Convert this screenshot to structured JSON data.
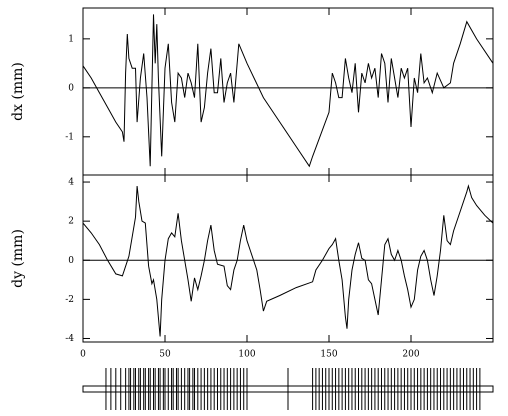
{
  "chart_data": [
    {
      "type": "line",
      "ylabel": "dx (mm)",
      "xlim": [
        0,
        250
      ],
      "xticks": [
        0,
        50,
        100,
        150,
        200
      ],
      "show_xtick_labels": false,
      "ylim": [
        -1.78,
        1.63
      ],
      "yticks": [
        -1,
        0,
        1
      ],
      "reference_line": 0,
      "color": "#000000",
      "x": [
        0,
        5,
        10,
        15,
        20,
        24,
        25,
        26,
        27,
        28,
        30,
        32,
        33,
        35,
        37,
        39,
        41,
        43,
        44,
        45,
        46,
        48,
        50,
        52,
        54,
        56,
        58,
        60,
        62,
        64,
        66,
        68,
        70,
        72,
        74,
        76,
        78,
        80,
        82,
        84,
        86,
        88,
        90,
        92,
        95,
        100,
        110,
        120,
        130,
        138,
        140,
        150,
        152,
        154,
        156,
        158,
        160,
        162,
        164,
        166,
        168,
        170,
        172,
        174,
        176,
        178,
        180,
        182,
        184,
        186,
        188,
        190,
        192,
        194,
        196,
        198,
        200,
        202,
        204,
        206,
        208,
        210,
        213,
        216,
        220,
        224,
        226,
        230,
        234,
        240,
        250
      ],
      "values": [
        0.45,
        0.2,
        -0.1,
        -0.4,
        -0.7,
        -0.9,
        -1.1,
        0.3,
        1.1,
        0.6,
        0.4,
        0.4,
        -0.7,
        0.2,
        0.7,
        -0.2,
        -1.6,
        1.5,
        0.5,
        1.3,
        0.2,
        -1.4,
        0.4,
        0.9,
        -0.3,
        -0.7,
        0.3,
        0.2,
        -0.2,
        0.3,
        0.1,
        -0.2,
        0.9,
        -0.7,
        -0.4,
        0.3,
        0.8,
        -0.1,
        -0.1,
        0.6,
        -0.3,
        0.1,
        0.3,
        -0.3,
        0.9,
        0.5,
        -0.2,
        -0.7,
        -1.2,
        -1.6,
        -1.4,
        -0.5,
        0.3,
        0.1,
        -0.2,
        -0.2,
        0.6,
        0.2,
        -0.1,
        0.5,
        -0.5,
        0.3,
        0.1,
        0.5,
        0.2,
        0.4,
        -0.2,
        0.7,
        0.5,
        -0.3,
        0.6,
        0.2,
        -0.2,
        0.4,
        0.2,
        0.4,
        -0.8,
        0.2,
        -0.1,
        0.7,
        0.1,
        0.2,
        -0.1,
        0.3,
        0,
        0.1,
        0.5,
        0.9,
        1.35,
        1.0,
        0.5
      ]
    },
    {
      "type": "line",
      "ylabel": "dy (mm)",
      "xlim": [
        0,
        250
      ],
      "xticks": [
        0,
        50,
        100,
        150,
        200
      ],
      "show_xtick_labels": true,
      "ylim": [
        -4.18,
        4.36
      ],
      "yticks": [
        -4,
        -2,
        0,
        2,
        4
      ],
      "reference_line": 0,
      "color": "#000000",
      "x": [
        0,
        5,
        10,
        15,
        20,
        24,
        28,
        30,
        32,
        33,
        34,
        36,
        38,
        40,
        42,
        43,
        45,
        47,
        48,
        50,
        52,
        54,
        56,
        58,
        60,
        62,
        64,
        66,
        68,
        70,
        72,
        74,
        76,
        78,
        80,
        82,
        86,
        88,
        90,
        92,
        94,
        96,
        98,
        100,
        102,
        106,
        108,
        110,
        112,
        120,
        130,
        140,
        142,
        146,
        150,
        152,
        154,
        156,
        158,
        160,
        161,
        162,
        164,
        166,
        168,
        170,
        172,
        174,
        176,
        178,
        180,
        182,
        184,
        186,
        188,
        190,
        192,
        194,
        196,
        198,
        200,
        202,
        204,
        206,
        208,
        210,
        212,
        214,
        216,
        218,
        220,
        222,
        224,
        226,
        230,
        234,
        235,
        237,
        240,
        245,
        250
      ],
      "values": [
        1.9,
        1.4,
        0.8,
        0,
        -0.7,
        -0.8,
        0.2,
        1.2,
        2.2,
        3.8,
        3.0,
        2.0,
        1.9,
        -0.3,
        -1.2,
        -1.0,
        -2.0,
        -3.9,
        -2.0,
        0,
        1.1,
        1.4,
        1.2,
        2.4,
        1.0,
        0,
        -1.0,
        -2.1,
        -0.9,
        -1.5,
        -0.8,
        0,
        1.0,
        1.8,
        0.5,
        -0.2,
        -0.3,
        -1.3,
        -1.5,
        -0.5,
        0,
        1.0,
        1.8,
        1.0,
        0.5,
        -0.5,
        -1.5,
        -2.6,
        -2.1,
        -1.8,
        -1.4,
        -1.1,
        -0.5,
        0,
        0.6,
        0.8,
        1.1,
        0,
        -1.0,
        -2.9,
        -3.5,
        -2.0,
        -0.5,
        0.3,
        0.9,
        0.1,
        0,
        -1.0,
        -1.2,
        -2.0,
        -2.8,
        -1.0,
        0.8,
        1.1,
        0.3,
        0,
        0.5,
        0,
        -0.8,
        -1.5,
        -2.4,
        -2.0,
        -0.5,
        0.2,
        0.5,
        0,
        -1.0,
        -1.8,
        -0.8,
        0.5,
        2.3,
        1.0,
        0.8,
        1.5,
        2.5,
        3.5,
        3.8,
        3.2,
        2.8,
        2.3,
        1.9
      ]
    },
    {
      "type": "rug",
      "xlim": [
        0,
        250
      ],
      "x": [
        14,
        17,
        20,
        23,
        26,
        28,
        29,
        31,
        32,
        34,
        35,
        37,
        38,
        40,
        41,
        43,
        44,
        46,
        47,
        49,
        50,
        52,
        54,
        55,
        57,
        58,
        60,
        62,
        64,
        65,
        67,
        68,
        70,
        72,
        74,
        76,
        78,
        80,
        82,
        84,
        86,
        88,
        90,
        92,
        94,
        96,
        98,
        100,
        125,
        140,
        142,
        144,
        146,
        148,
        150,
        152,
        154,
        156,
        158,
        160,
        162,
        164,
        166,
        168,
        170,
        172,
        174,
        176,
        178,
        180,
        182,
        184,
        186,
        188,
        190,
        192,
        194,
        196,
        198,
        200,
        202,
        204,
        206,
        208,
        210,
        212,
        214,
        216,
        218,
        220,
        222,
        224,
        226,
        228,
        230,
        232,
        234,
        236,
        238,
        240,
        242
      ]
    }
  ]
}
